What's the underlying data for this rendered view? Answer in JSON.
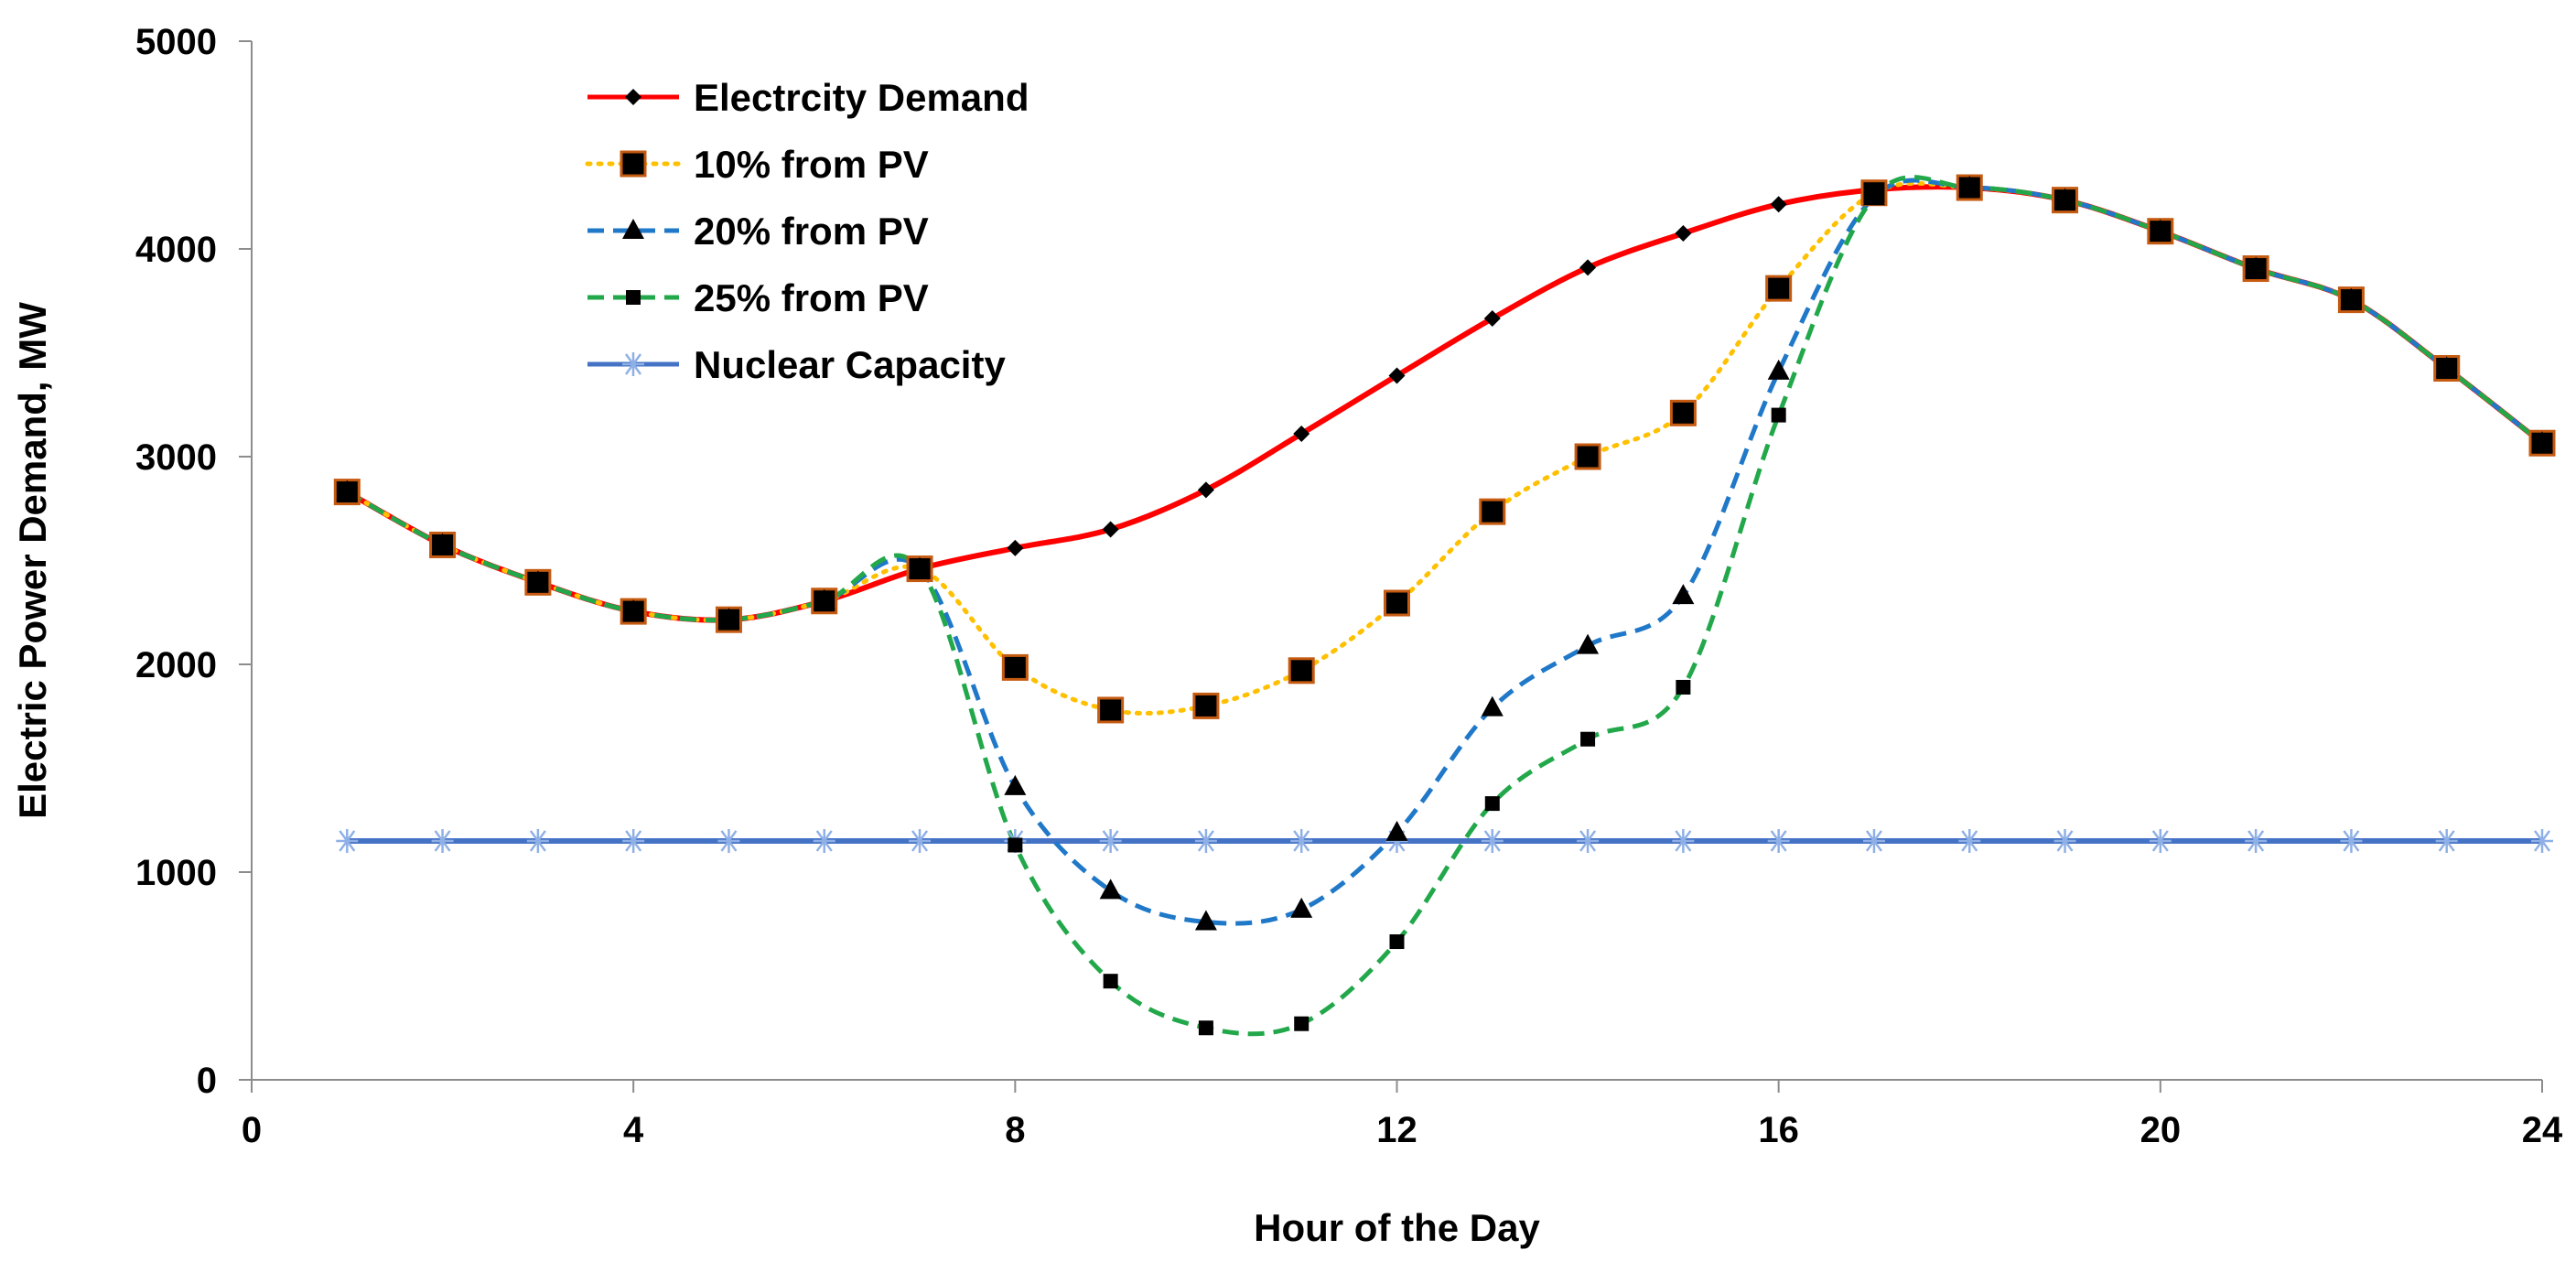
{
  "chart_data": {
    "type": "line",
    "title": "",
    "xlabel": "Hour of the Day",
    "ylabel": "Electric Power Demand, MW",
    "xlim": [
      0,
      24
    ],
    "ylim": [
      0,
      5000
    ],
    "xticks": [
      0,
      4,
      8,
      12,
      16,
      20,
      24
    ],
    "yticks": [
      0,
      1000,
      2000,
      3000,
      4000,
      5000
    ],
    "xtick_labels": [
      "0",
      "4",
      "8",
      "12",
      "16",
      "20",
      "24"
    ],
    "ytick_labels": [
      "0",
      "1000",
      "2000",
      "3000",
      "4000",
      "5000"
    ],
    "grid": false,
    "legend_position": "top-left",
    "x": [
      1,
      2,
      3,
      4,
      5,
      6,
      7,
      8,
      9,
      10,
      11,
      12,
      13,
      14,
      15,
      16,
      17,
      18,
      19,
      20,
      21,
      22,
      23,
      24
    ],
    "series": [
      {
        "name": "Electrcity Demand",
        "color": "#ff0000",
        "line_style": "solid",
        "marker": "diamond",
        "values": [
          2830,
          2575,
          2395,
          2255,
          2215,
          2305,
          2460,
          2560,
          2650,
          2840,
          3110,
          3390,
          3665,
          3910,
          4075,
          4215,
          4285,
          4295,
          4235,
          4085,
          3905,
          3755,
          3425,
          3065
        ]
      },
      {
        "name": "10% from PV",
        "color": "#ffc000",
        "line_style": "dotted",
        "marker": "square",
        "values": [
          2830,
          2575,
          2395,
          2255,
          2215,
          2305,
          2460,
          1985,
          1780,
          1800,
          1970,
          2295,
          2735,
          3000,
          3210,
          3810,
          4270,
          4295,
          4235,
          4085,
          3905,
          3755,
          3425,
          3065
        ]
      },
      {
        "name": "20% from PV",
        "color": "#1f78c8",
        "line_style": "dashed",
        "marker": "triangle",
        "values": [
          2830,
          2575,
          2395,
          2255,
          2215,
          2305,
          2460,
          1410,
          910,
          760,
          820,
          1190,
          1790,
          2090,
          2330,
          3410,
          4250,
          4295,
          4235,
          4085,
          3905,
          3755,
          3425,
          3065
        ]
      },
      {
        "name": "25% from PV",
        "color": "#22a84a",
        "line_style": "dashed",
        "marker": "small-square",
        "values": [
          2830,
          2575,
          2395,
          2255,
          2215,
          2305,
          2460,
          1130,
          475,
          250,
          270,
          665,
          1330,
          1640,
          1890,
          3200,
          4250,
          4295,
          4235,
          4085,
          3905,
          3755,
          3425,
          3065
        ]
      },
      {
        "name": "Nuclear Capacity",
        "color": "#4472c4",
        "line_style": "solid",
        "marker": "asterisk",
        "values": [
          1150,
          1150,
          1150,
          1150,
          1150,
          1150,
          1150,
          1150,
          1150,
          1150,
          1150,
          1150,
          1150,
          1150,
          1150,
          1150,
          1150,
          1150,
          1150,
          1150,
          1150,
          1150,
          1150,
          1150
        ]
      }
    ]
  }
}
